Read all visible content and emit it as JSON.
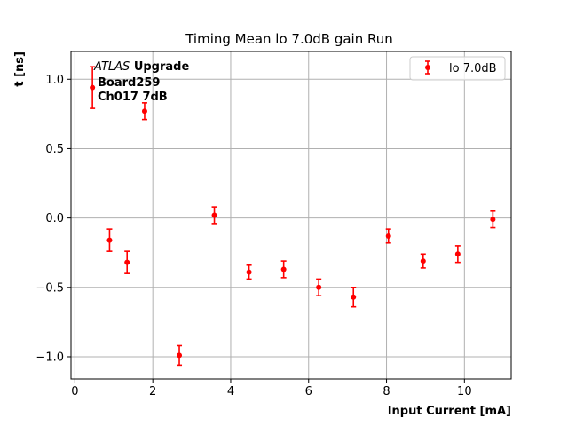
{
  "chart_data": {
    "type": "scatter",
    "title": "Timing Mean lo 7.0dB gain Run",
    "xlabel": "Input Current [mA]",
    "ylabel": "t [ns]",
    "xlim": [
      -0.1,
      11.2
    ],
    "ylim": [
      -1.16,
      1.2
    ],
    "xticks": [
      0,
      2,
      4,
      6,
      8,
      10
    ],
    "yticks": [
      -1.0,
      -0.5,
      0.0,
      0.5,
      1.0
    ],
    "xtick_labels": [
      "0",
      "2",
      "4",
      "6",
      "8",
      "10"
    ],
    "ytick_labels": [
      "−1.0",
      "−0.5",
      "0.0",
      "0.5",
      "1.0"
    ],
    "grid": true,
    "legend_position": "top-right",
    "annotation": {
      "atlas": "ATLAS",
      "upgrade": "Upgrade",
      "board": "Board259",
      "channel": "Ch017 7dB"
    },
    "series": [
      {
        "name": "lo 7.0dB",
        "color": "#ff0000",
        "points": [
          {
            "x": 0.45,
            "y": 0.94,
            "err": 0.15
          },
          {
            "x": 0.89,
            "y": -0.16,
            "err": 0.08
          },
          {
            "x": 1.34,
            "y": -0.32,
            "err": 0.08
          },
          {
            "x": 1.79,
            "y": 0.77,
            "err": 0.06
          },
          {
            "x": 2.68,
            "y": -0.99,
            "err": 0.07
          },
          {
            "x": 3.58,
            "y": 0.02,
            "err": 0.06
          },
          {
            "x": 4.47,
            "y": -0.39,
            "err": 0.05
          },
          {
            "x": 5.36,
            "y": -0.37,
            "err": 0.06
          },
          {
            "x": 6.26,
            "y": -0.5,
            "err": 0.06
          },
          {
            "x": 7.15,
            "y": -0.57,
            "err": 0.07
          },
          {
            "x": 8.05,
            "y": -0.13,
            "err": 0.05
          },
          {
            "x": 8.94,
            "y": -0.31,
            "err": 0.05
          },
          {
            "x": 9.83,
            "y": -0.26,
            "err": 0.06
          },
          {
            "x": 10.73,
            "y": -0.01,
            "err": 0.06
          }
        ]
      }
    ]
  }
}
